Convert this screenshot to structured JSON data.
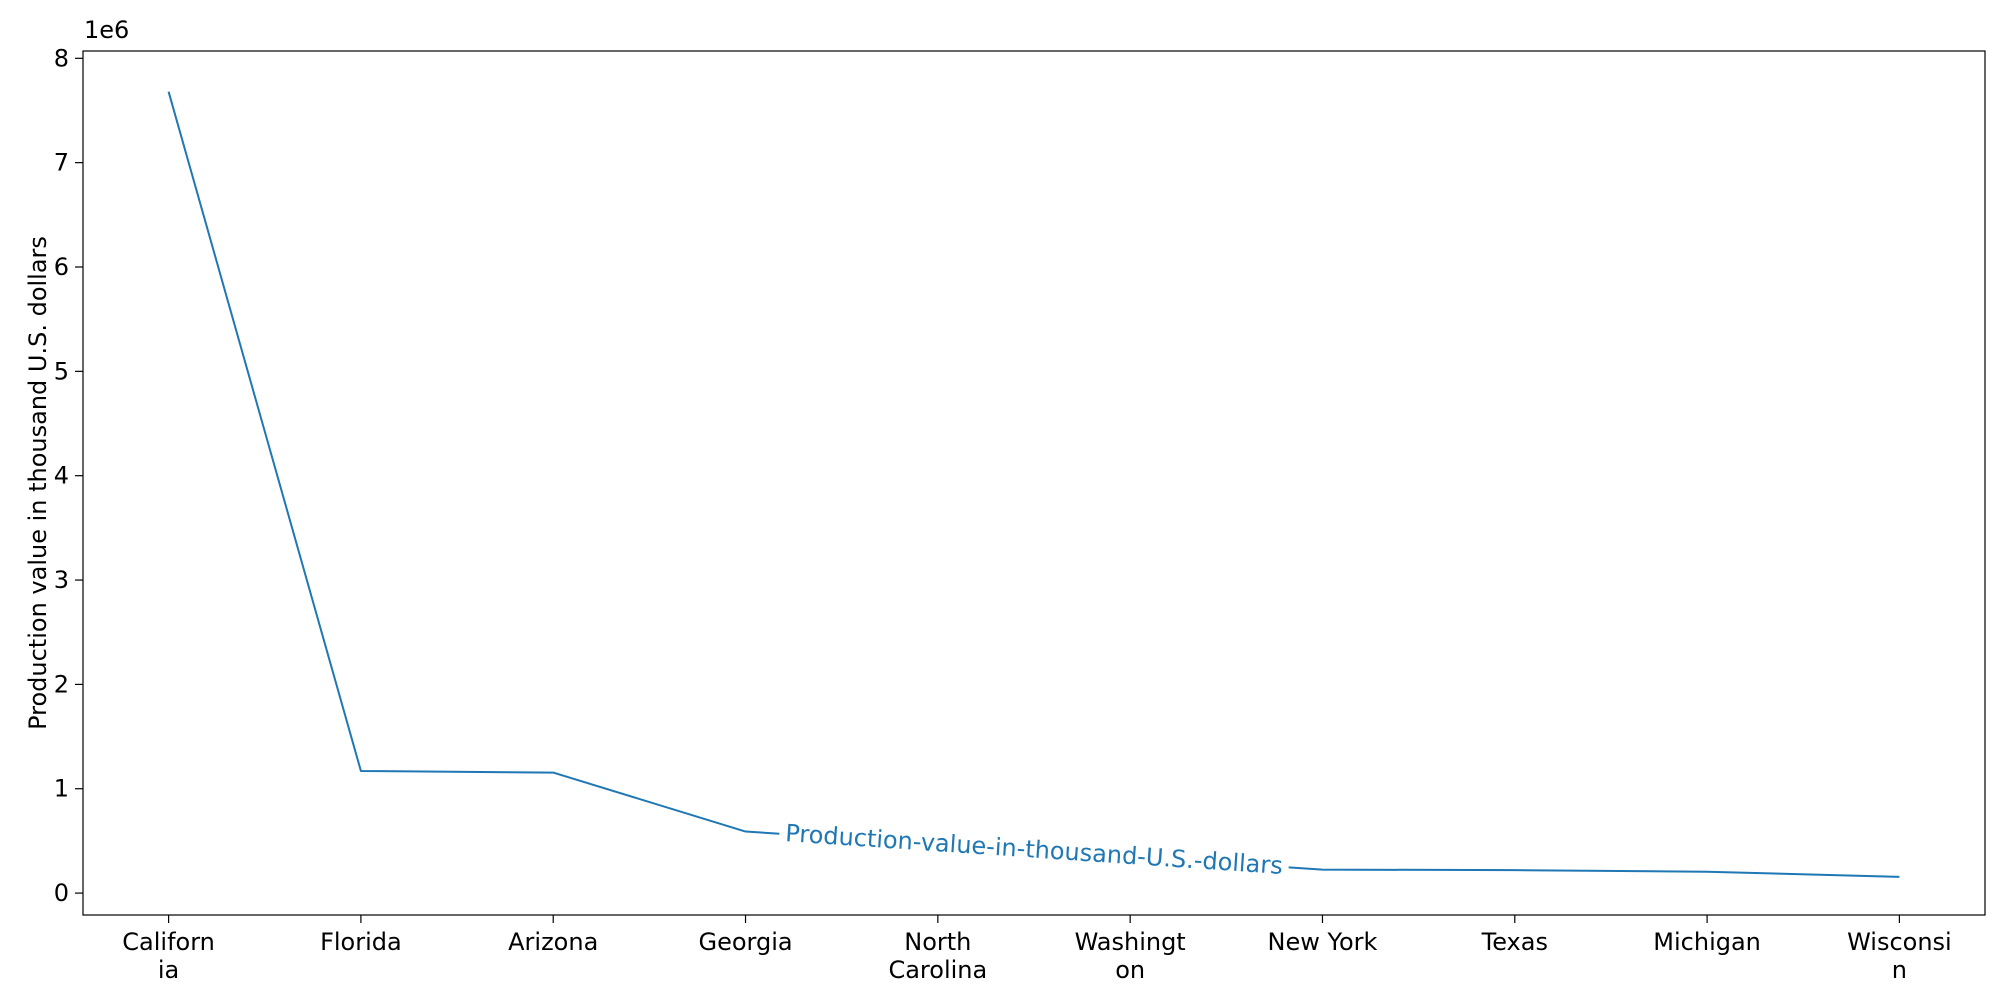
{
  "chart_data": {
    "type": "line",
    "categories": [
      "California",
      "Florida",
      "Arizona",
      "Georgia",
      "North Carolina",
      "Washington",
      "New York",
      "Texas",
      "Michigan",
      "Wisconsin"
    ],
    "category_labels": [
      [
        "Californ",
        "ia"
      ],
      [
        "Florida"
      ],
      [
        "Arizona"
      ],
      [
        "Georgia"
      ],
      [
        "North",
        "Carolina"
      ],
      [
        "Washingt",
        "on"
      ],
      [
        "New York"
      ],
      [
        "Texas"
      ],
      [
        "Michigan"
      ],
      [
        "Wisconsi",
        "n"
      ]
    ],
    "series": [
      {
        "name": "Production-value-in-thousand-U.S.-dollars",
        "values": [
          7680000,
          1170000,
          1155000,
          590000,
          440000,
          290000,
          225000,
          220000,
          205000,
          155000
        ]
      }
    ],
    "xlabel": "",
    "ylabel": "Production value in thousand U.S. dollars",
    "ylim": [
      -210000,
      8070000
    ],
    "yticks": [
      0,
      1,
      2,
      3,
      4,
      5,
      6,
      7,
      8
    ],
    "y_multiplier_label": "1e6",
    "line_color": "#1f77b4",
    "grid": false,
    "legend": "inline label on line"
  }
}
